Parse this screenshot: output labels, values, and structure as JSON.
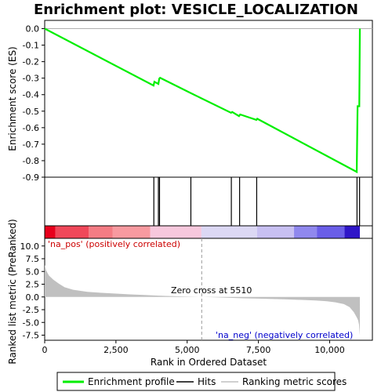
{
  "chart_data": {
    "type": "line",
    "title": "Enrichment plot: VESICLE_LOCALIZATION",
    "x_axis": {
      "label": "Rank in Ordered Dataset",
      "range": [
        0,
        11500
      ],
      "ticks": [
        0,
        2500,
        5000,
        7500,
        10000
      ],
      "tick_labels": [
        "0",
        "2,500",
        "5,000",
        "7,500",
        "10,000"
      ]
    },
    "es_panel": {
      "ylabel": "Enrichment score (ES)",
      "ylim": [
        -0.9,
        0.05
      ],
      "yticks": [
        0.0,
        -0.1,
        -0.2,
        -0.3,
        -0.4,
        -0.5,
        -0.6,
        -0.7,
        -0.8,
        -0.9
      ],
      "ytick_labels": [
        "0.0",
        "-0.1",
        "-0.2",
        "-0.3",
        "-0.4",
        "-0.5",
        "-0.6",
        "-0.7",
        "-0.8",
        "-0.9"
      ],
      "grid": false
    },
    "series": [
      {
        "name": "Enrichment profile",
        "color": "#00ee00",
        "points": [
          [
            0,
            0.0
          ],
          [
            3820,
            -0.345
          ],
          [
            3850,
            -0.322
          ],
          [
            3990,
            -0.335
          ],
          [
            4020,
            -0.303
          ],
          [
            4050,
            -0.298
          ],
          [
            5120,
            -0.39
          ],
          [
            6540,
            -0.51
          ],
          [
            6580,
            -0.505
          ],
          [
            6820,
            -0.53
          ],
          [
            6860,
            -0.52
          ],
          [
            7430,
            -0.553
          ],
          [
            7460,
            -0.546
          ],
          [
            10950,
            -0.868
          ],
          [
            10980,
            -0.47
          ],
          [
            11040,
            -0.47
          ],
          [
            11060,
            0.0
          ]
        ]
      }
    ],
    "hits": {
      "name": "Hits",
      "color": "#000000",
      "ranks": [
        3830,
        3990,
        4030,
        5130,
        6550,
        6840,
        7440,
        10960,
        11050
      ]
    },
    "ranked_metric": {
      "name": "Ranking metric scores",
      "color": "#c0c0c0",
      "ylabel": "Ranked list metric (PreRanked)",
      "ylim": [
        -8.5,
        11.5
      ],
      "yticks": [
        10.0,
        7.5,
        5.0,
        2.5,
        0.0,
        -2.5,
        -5.0,
        -7.5
      ],
      "ytick_labels": [
        "10.0",
        "7.5",
        "5.0",
        "2.5",
        "0.0",
        "-2.5",
        "-5.0",
        "-7.5"
      ],
      "curve": [
        [
          0,
          6.3
        ],
        [
          50,
          5.2
        ],
        [
          150,
          4.2
        ],
        [
          300,
          3.4
        ],
        [
          500,
          2.6
        ],
        [
          700,
          1.9
        ],
        [
          1000,
          1.4
        ],
        [
          1500,
          1.0
        ],
        [
          2000,
          0.8
        ],
        [
          2500,
          0.65
        ],
        [
          3000,
          0.5
        ],
        [
          3500,
          0.38
        ],
        [
          4000,
          0.25
        ],
        [
          4500,
          0.15
        ],
        [
          5000,
          0.06
        ],
        [
          5510,
          0.0
        ],
        [
          6000,
          -0.08
        ],
        [
          6500,
          -0.18
        ],
        [
          7000,
          -0.26
        ],
        [
          7500,
          -0.33
        ],
        [
          8000,
          -0.4
        ],
        [
          8500,
          -0.48
        ],
        [
          9000,
          -0.58
        ],
        [
          9500,
          -0.7
        ],
        [
          9900,
          -0.85
        ],
        [
          10200,
          -1.05
        ],
        [
          10500,
          -1.4
        ],
        [
          10700,
          -2.0
        ],
        [
          10850,
          -3.0
        ],
        [
          10950,
          -4.0
        ],
        [
          11000,
          -4.6
        ],
        [
          11030,
          -5.4
        ],
        [
          11060,
          -7.5
        ]
      ]
    },
    "colorbar": {
      "end": 11060,
      "segments": [
        {
          "from": 0,
          "to": 380,
          "color": "#e8001c"
        },
        {
          "from": 380,
          "to": 1550,
          "color": "#f0485a"
        },
        {
          "from": 1550,
          "to": 2380,
          "color": "#f47c84"
        },
        {
          "from": 2380,
          "to": 3700,
          "color": "#f89aa0"
        },
        {
          "from": 3700,
          "to": 5500,
          "color": "#f7c8dd"
        },
        {
          "from": 5500,
          "to": 7450,
          "color": "#dcd8f4"
        },
        {
          "from": 7450,
          "to": 8750,
          "color": "#c8c0f2"
        },
        {
          "from": 8750,
          "to": 9550,
          "color": "#9088ee"
        },
        {
          "from": 9550,
          "to": 10520,
          "color": "#6a5ee8"
        },
        {
          "from": 10520,
          "to": 11060,
          "color": "#2f16c8"
        }
      ]
    },
    "annotations": {
      "pos_label": "'na_pos' (positively correlated)",
      "pos_color": "#cc0000",
      "neg_label": "'na_neg' (negatively correlated)",
      "neg_color": "#0000cc",
      "zero_cross_label": "Zero cross at 5510",
      "zero_cross_rank": 5510
    },
    "legend": {
      "placement": "bottom",
      "items": [
        {
          "label": "Enrichment profile",
          "color": "#00ee00"
        },
        {
          "label": "Hits",
          "color": "#000000"
        },
        {
          "label": "Ranking metric scores",
          "color": "#c0c0c0"
        }
      ]
    }
  }
}
